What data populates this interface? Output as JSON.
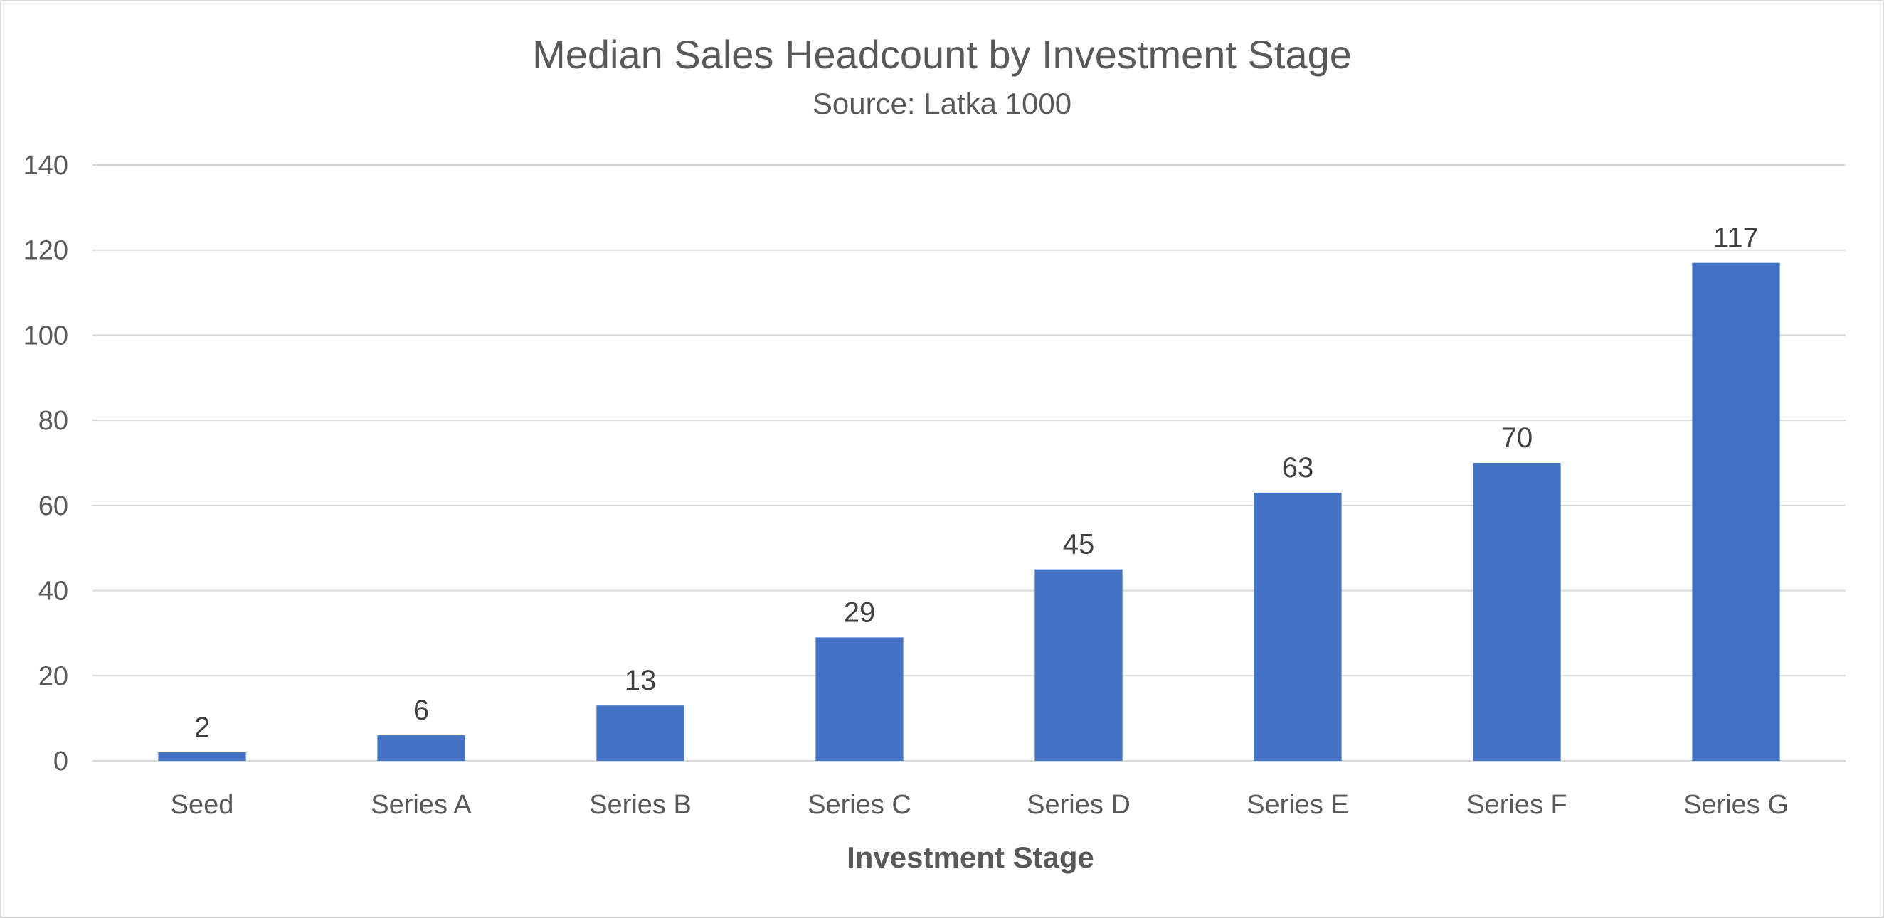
{
  "chart_data": {
    "type": "bar",
    "title": "Median Sales Headcount by Investment Stage",
    "subtitle": "Source:  Latka 1000",
    "xlabel": "Investment Stage",
    "ylabel": "",
    "categories": [
      "Seed",
      "Series A",
      "Series B",
      "Series C",
      "Series D",
      "Series E",
      "Series F",
      "Series G"
    ],
    "values": [
      2,
      6,
      13,
      29,
      45,
      63,
      70,
      117
    ],
    "data_labels": [
      "2",
      "6",
      "13",
      "29",
      "45",
      "63",
      "70",
      "117"
    ],
    "ylim": [
      0,
      140
    ],
    "yticks": [
      0,
      20,
      40,
      60,
      80,
      100,
      120,
      140
    ],
    "grid": true,
    "legend": "none",
    "bar_color": "#4472C4"
  }
}
